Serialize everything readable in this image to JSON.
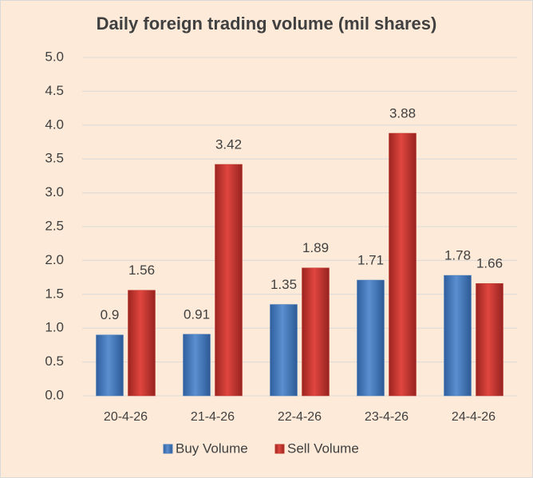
{
  "chart_data": {
    "type": "bar",
    "title": "Daily foreign trading volume (mil shares)",
    "categories": [
      "20-4-26",
      "21-4-26",
      "22-4-26",
      "23-4-26",
      "24-4-26"
    ],
    "series": [
      {
        "name": "Buy Volume",
        "color": "#4a7ebb",
        "values": [
          0.9,
          0.91,
          1.35,
          1.71,
          1.78
        ]
      },
      {
        "name": "Sell Volume",
        "color": "#c0392b",
        "values": [
          1.56,
          3.42,
          1.89,
          3.88,
          1.66
        ]
      }
    ],
    "ylim": [
      0,
      5
    ],
    "yticks": [
      {
        "value": 0,
        "label": "0.0"
      },
      0.5,
      {
        "value": 1,
        "label": "1.0"
      },
      1.5,
      {
        "value": 2,
        "label": "2.0"
      },
      2.5,
      {
        "value": 3,
        "label": "3.0"
      },
      3.5,
      {
        "value": 4,
        "label": "4.0"
      },
      4.5,
      {
        "value": 5,
        "label": "5.0"
      }
    ],
    "grid": true,
    "legend": "bottom"
  }
}
